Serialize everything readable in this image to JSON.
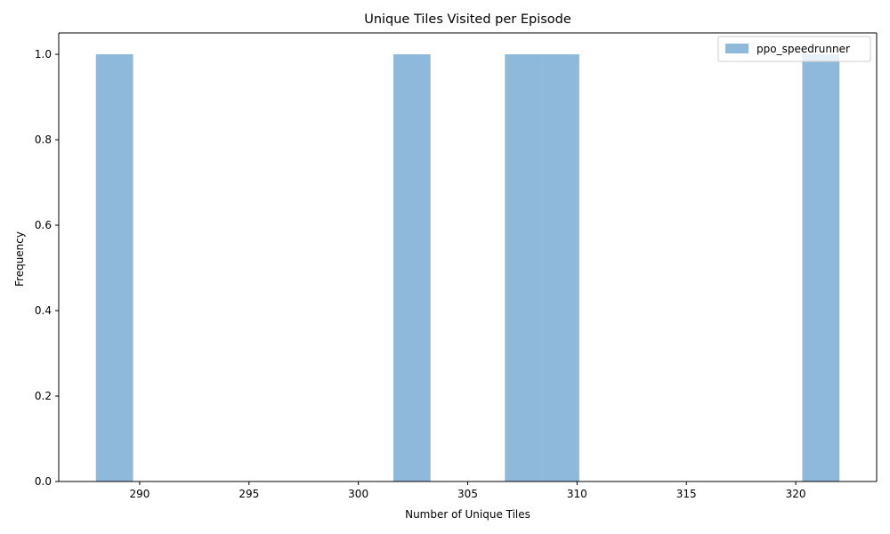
{
  "chart_data": {
    "type": "bar",
    "title": "Unique Tiles Visited per Episode",
    "xlabel": "Number of Unique Tiles",
    "ylabel": "Frequency",
    "xlim": [
      286.3,
      323.7
    ],
    "ylim": [
      0,
      1.05
    ],
    "x_ticks": [
      290,
      295,
      300,
      305,
      310,
      315,
      320
    ],
    "y_ticks": [
      0.0,
      0.2,
      0.4,
      0.6,
      0.8,
      1.0
    ],
    "x_tick_labels": [
      "290",
      "295",
      "300",
      "305",
      "310",
      "315",
      "320"
    ],
    "y_tick_labels": [
      "0.0",
      "0.2",
      "0.4",
      "0.6",
      "0.8",
      "1.0"
    ],
    "series": [
      {
        "name": "ppo_speedrunner",
        "color": "#8fb9da",
        "bins": [
          {
            "x0": 288.0,
            "x1": 289.7,
            "value": 1
          },
          {
            "x0": 301.6,
            "x1": 303.3,
            "value": 1
          },
          {
            "x0": 306.7,
            "x1": 308.4,
            "value": 1
          },
          {
            "x0": 308.4,
            "x1": 310.1,
            "value": 1
          },
          {
            "x0": 320.3,
            "x1": 322.0,
            "value": 1
          }
        ]
      }
    ],
    "legend_position": "top-right",
    "grid": false
  }
}
